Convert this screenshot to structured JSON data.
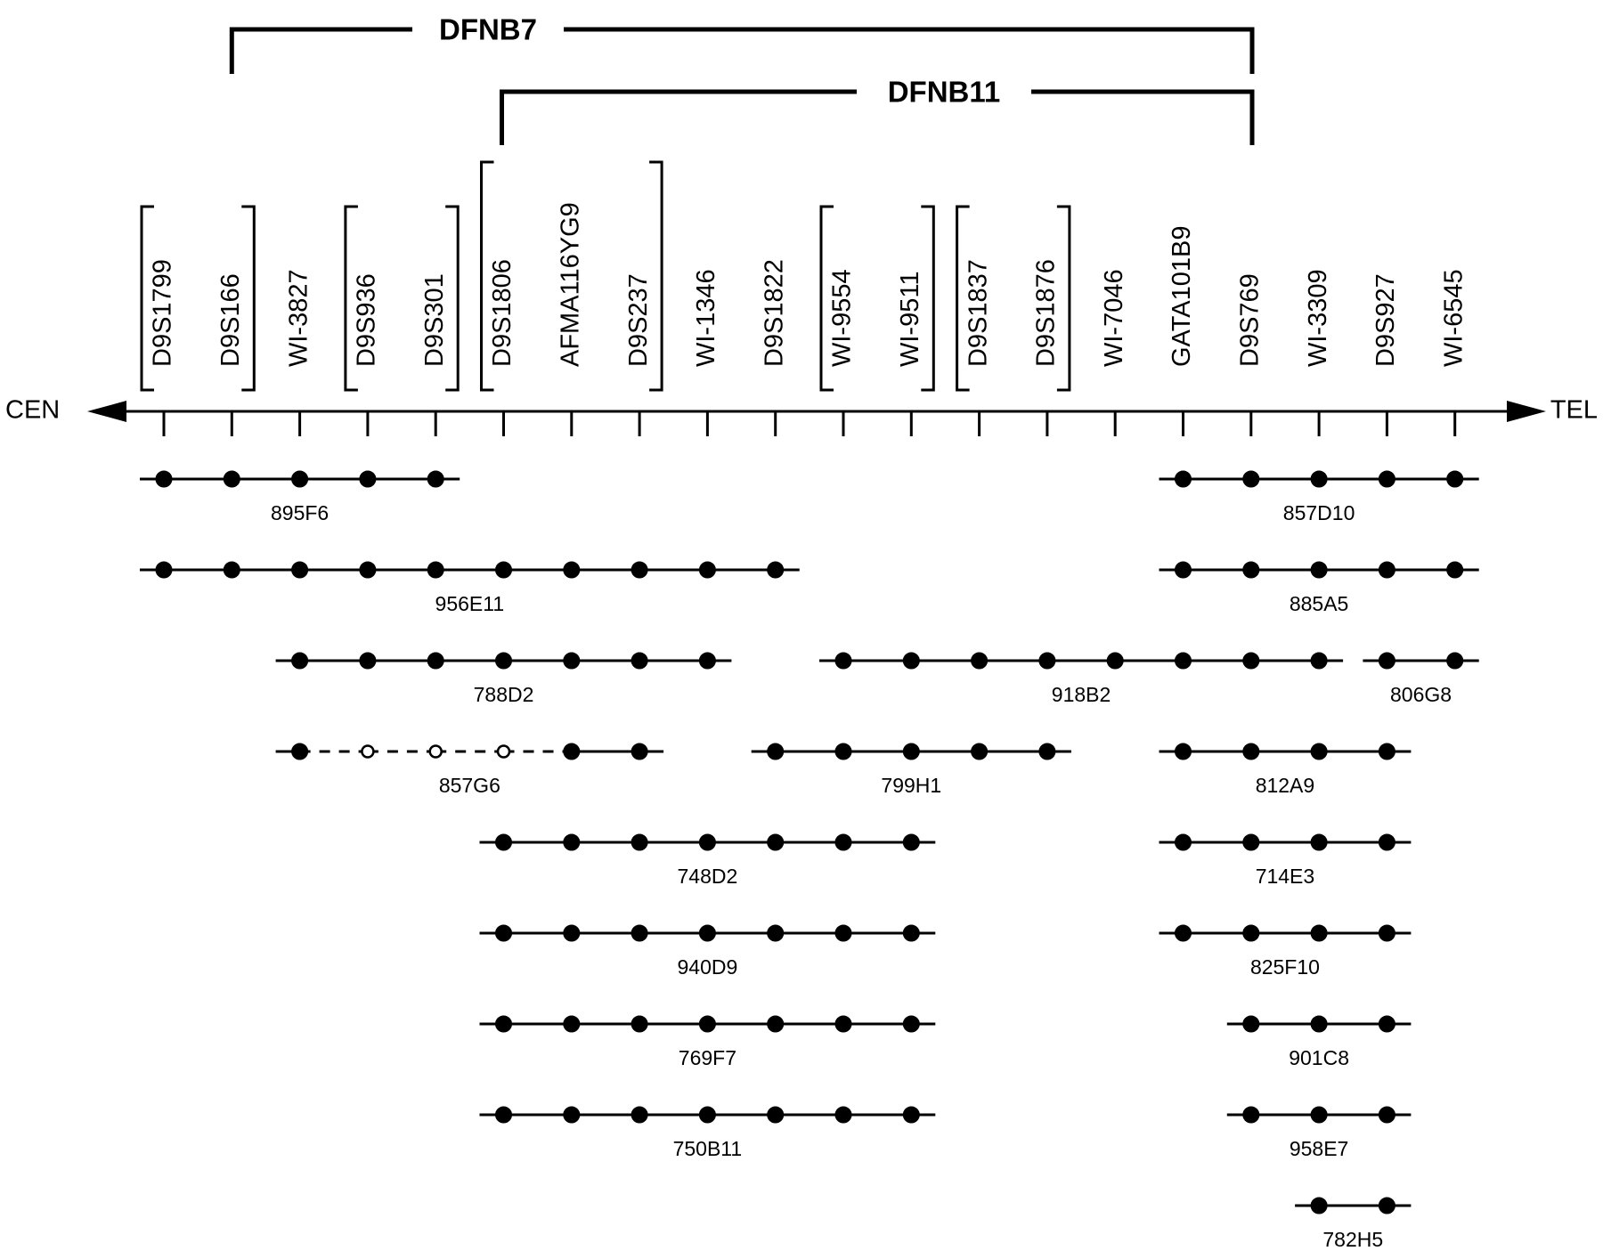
{
  "regions": [
    {
      "name": "DFNB7",
      "from_marker": 1,
      "to_marker": 16
    },
    {
      "name": "DFNB11",
      "from_marker": 5,
      "to_marker": 16
    }
  ],
  "axis": {
    "left_label": "CEN",
    "right_label": "TEL"
  },
  "markers": [
    "D9S1799",
    "D9S166",
    "WI-3827",
    "D9S936",
    "D9S301",
    "D9S1806",
    "AFMA116YG9",
    "D9S237",
    "WI-1346",
    "D9S1822",
    "WI-9554",
    "WI-9511",
    "D9S1837",
    "D9S1876",
    "WI-7046",
    "GATA101B9",
    "D9S769",
    "WI-3309",
    "D9S927",
    "WI-6545"
  ],
  "marker_groups": [
    {
      "from_marker": 0,
      "to_marker": 1
    },
    {
      "from_marker": 3,
      "to_marker": 4
    },
    {
      "from_marker": 5,
      "to_marker": 7
    },
    {
      "from_marker": 10,
      "to_marker": 11
    },
    {
      "from_marker": 12,
      "to_marker": 13
    }
  ],
  "clones": [
    {
      "name": "895F6",
      "markers": [
        0,
        1,
        2,
        3,
        4
      ],
      "open_markers": [],
      "row": 0,
      "extend_left": true,
      "extend_right": true
    },
    {
      "name": "956E11",
      "markers": [
        0,
        1,
        2,
        3,
        4,
        5,
        6,
        7,
        8,
        9
      ],
      "open_markers": [],
      "row": 1,
      "extend_left": true,
      "extend_right": true
    },
    {
      "name": "788D2",
      "markers": [
        2,
        3,
        4,
        5,
        6,
        7,
        8
      ],
      "open_markers": [],
      "row": 2,
      "extend_left": true,
      "extend_right": true
    },
    {
      "name": "857G6",
      "markers": [
        2,
        3,
        4,
        5,
        6,
        7
      ],
      "open_markers": [
        3,
        4,
        5
      ],
      "row": 3,
      "extend_left": true,
      "extend_right": true
    },
    {
      "name": "748D2",
      "markers": [
        5,
        6,
        7,
        8,
        9,
        10,
        11
      ],
      "open_markers": [],
      "row": 4,
      "extend_left": true,
      "extend_right": true
    },
    {
      "name": "940D9",
      "markers": [
        5,
        6,
        7,
        8,
        9,
        10,
        11
      ],
      "open_markers": [],
      "row": 5,
      "extend_left": true,
      "extend_right": true
    },
    {
      "name": "769F7",
      "markers": [
        5,
        6,
        7,
        8,
        9,
        10,
        11
      ],
      "open_markers": [],
      "row": 6,
      "extend_left": true,
      "extend_right": true
    },
    {
      "name": "750B11",
      "markers": [
        5,
        6,
        7,
        8,
        9,
        10,
        11
      ],
      "open_markers": [],
      "row": 7,
      "extend_left": true,
      "extend_right": true
    },
    {
      "name": "918B2",
      "markers": [
        10,
        11,
        12,
        13,
        14,
        15,
        16,
        17
      ],
      "open_markers": [],
      "row": 2,
      "extend_left": true,
      "extend_right": true
    },
    {
      "name": "799H1",
      "markers": [
        9,
        10,
        11,
        12,
        13
      ],
      "open_markers": [],
      "row": 3,
      "extend_left": true,
      "extend_right": true
    },
    {
      "name": "857D10",
      "markers": [
        15,
        16,
        17,
        18,
        19
      ],
      "open_markers": [],
      "row": 0,
      "extend_left": true,
      "extend_right": true
    },
    {
      "name": "885A5",
      "markers": [
        15,
        16,
        17,
        18,
        19
      ],
      "open_markers": [],
      "row": 1,
      "extend_left": true,
      "extend_right": true
    },
    {
      "name": "806G8",
      "markers": [
        18,
        19
      ],
      "open_markers": [],
      "row": 2,
      "extend_left": true,
      "extend_right": true
    },
    {
      "name": "812A9",
      "markers": [
        15,
        16,
        17,
        18
      ],
      "open_markers": [],
      "row": 3,
      "extend_left": true,
      "extend_right": true
    },
    {
      "name": "714E3",
      "markers": [
        15,
        16,
        17,
        18
      ],
      "open_markers": [],
      "row": 4,
      "extend_left": true,
      "extend_right": true
    },
    {
      "name": "825F10",
      "markers": [
        15,
        16,
        17,
        18
      ],
      "open_markers": [],
      "row": 5,
      "extend_left": true,
      "extend_right": true
    },
    {
      "name": "901C8",
      "markers": [
        16,
        17,
        18
      ],
      "open_markers": [],
      "row": 6,
      "extend_left": true,
      "extend_right": true
    },
    {
      "name": "958E7",
      "markers": [
        16,
        17,
        18
      ],
      "open_markers": [],
      "row": 7,
      "extend_left": true,
      "extend_right": true
    },
    {
      "name": "782H5",
      "markers": [
        17,
        18
      ],
      "open_markers": [],
      "row": 8,
      "extend_left": true,
      "extend_right": true
    }
  ]
}
